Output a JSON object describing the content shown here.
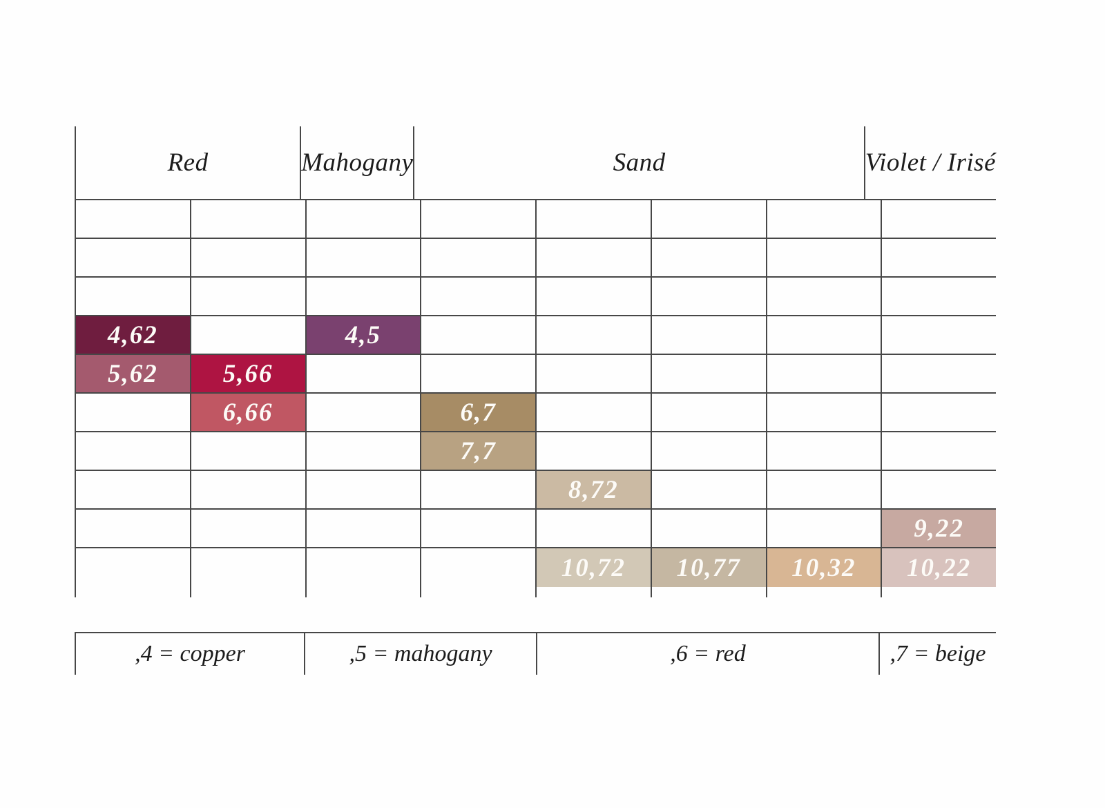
{
  "chart_data": {
    "type": "table",
    "rows": 10,
    "cols": 8,
    "grid_line_color": "#474747",
    "cell_text_color": "#fdfbf7",
    "column_groups": [
      {
        "label": "Red",
        "span": 2,
        "columns": [
          1,
          2
        ]
      },
      {
        "label": "Mahogany",
        "span": 1,
        "columns": [
          3
        ]
      },
      {
        "label": "Sand",
        "span": 4,
        "columns": [
          4,
          5,
          6,
          7
        ]
      },
      {
        "label": "Violet / Irisé",
        "span": 1,
        "columns": [
          8
        ]
      }
    ],
    "shades": [
      {
        "code": "4,62",
        "row_level": 4,
        "column": 1,
        "group": "Red",
        "swatch": "#6f1d3f"
      },
      {
        "code": "4,5",
        "row_level": 4,
        "column": 3,
        "group": "Mahogany",
        "swatch": "#7a416f"
      },
      {
        "code": "5,62",
        "row_level": 5,
        "column": 1,
        "group": "Red",
        "swatch": "#a45a6e"
      },
      {
        "code": "5,66",
        "row_level": 5,
        "column": 2,
        "group": "Red",
        "swatch": "#ae1442"
      },
      {
        "code": "6,66",
        "row_level": 6,
        "column": 2,
        "group": "Red",
        "swatch": "#c05763"
      },
      {
        "code": "6,7",
        "row_level": 6,
        "column": 4,
        "group": "Sand",
        "swatch": "#a78c65"
      },
      {
        "code": "7,7",
        "row_level": 7,
        "column": 4,
        "group": "Sand",
        "swatch": "#b8a282"
      },
      {
        "code": "8,72",
        "row_level": 8,
        "column": 5,
        "group": "Sand",
        "swatch": "#cbbaa3"
      },
      {
        "code": "9,22",
        "row_level": 9,
        "column": 8,
        "group": "Violet / Irisé",
        "swatch": "#c7a9a1"
      },
      {
        "code": "10,72",
        "row_level": 10,
        "column": 5,
        "group": "Sand",
        "swatch": "#d2c8b6"
      },
      {
        "code": "10,77",
        "row_level": 10,
        "column": 6,
        "group": "Sand",
        "swatch": "#c5b7a2"
      },
      {
        "code": "10,32",
        "row_level": 10,
        "column": 7,
        "group": "Sand",
        "swatch": "#d8b694"
      },
      {
        "code": "10,22",
        "row_level": 10,
        "column": 8,
        "group": "Violet / Irisé",
        "swatch": "#d8c2bd"
      }
    ],
    "footnotes": [
      ",4 = copper",
      ",5 = mahogany",
      ",6 = red",
      ",7 = beige"
    ]
  }
}
